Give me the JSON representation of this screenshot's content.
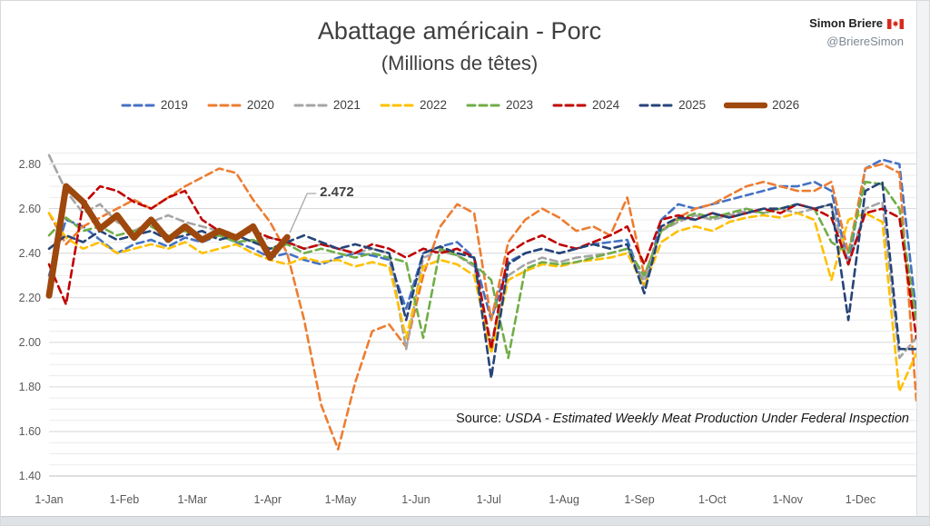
{
  "header": {
    "title": "Abattage américain - Porc",
    "subtitle": "(Millions de têtes)",
    "attribution_name": "Simon Briere",
    "attribution_handle": "@BriereSimon",
    "flag_icon": "canada-flag"
  },
  "annotation": {
    "label": "2.472",
    "series": "2026",
    "week": 15
  },
  "source_note": {
    "prefix": "Source: ",
    "text": "USDA - Estimated Weekly Meat Production Under Federal Inspection"
  },
  "chart_data": {
    "type": "line",
    "title": "Abattage américain - Porc",
    "subtitle": "(Millions de têtes)",
    "xlabel": "",
    "ylabel": "Millions de têtes",
    "x_unit": "week-of-year (weekly data, Jan-Dec)",
    "ylim": [
      1.4,
      2.88
    ],
    "y_ticks": [
      1.4,
      1.6,
      1.8,
      2.0,
      2.2,
      2.4,
      2.6,
      2.8
    ],
    "grid": "horizontal only; minor every 0.05, labeled major every 0.20",
    "legend_position": "top",
    "x_tick_labels": [
      "1-Jan",
      "1-Feb",
      "1-Mar",
      "1-Apr",
      "1-May",
      "1-Jun",
      "1-Jul",
      "1-Aug",
      "1-Sep",
      "1-Oct",
      "1-Nov",
      "1-Dec"
    ],
    "month_start_days": [
      0,
      31,
      59,
      90,
      120,
      151,
      181,
      212,
      243,
      273,
      304,
      334
    ],
    "annotation_color": "#a6a6a6",
    "series": [
      {
        "name": "2019",
        "color": "#4472C4",
        "style": "dashed",
        "weeks": [
          2.3,
          2.55,
          2.52,
          2.46,
          2.4,
          2.44,
          2.46,
          2.43,
          2.47,
          2.45,
          2.48,
          2.45,
          2.42,
          2.38,
          2.4,
          2.37,
          2.35,
          2.38,
          2.4,
          2.39,
          2.37,
          2.15,
          2.4,
          2.43,
          2.45,
          2.38,
          2.1,
          2.36,
          2.4,
          2.42,
          2.4,
          2.42,
          2.44,
          2.45,
          2.46,
          2.25,
          2.55,
          2.62,
          2.6,
          2.62,
          2.64,
          2.66,
          2.68,
          2.7,
          2.7,
          2.72,
          2.68,
          2.35,
          2.78,
          2.82,
          2.8,
          2.13
        ]
      },
      {
        "name": "2020",
        "color": "#ED7D31",
        "style": "dashed",
        "weeks": [
          2.58,
          2.44,
          2.52,
          2.56,
          2.6,
          2.64,
          2.6,
          2.65,
          2.7,
          2.74,
          2.78,
          2.76,
          2.64,
          2.54,
          2.4,
          2.1,
          1.72,
          1.52,
          1.82,
          2.05,
          2.08,
          1.98,
          2.3,
          2.52,
          2.62,
          2.58,
          2.1,
          2.45,
          2.55,
          2.6,
          2.56,
          2.5,
          2.52,
          2.48,
          2.65,
          2.3,
          2.5,
          2.56,
          2.6,
          2.62,
          2.66,
          2.7,
          2.72,
          2.7,
          2.68,
          2.68,
          2.72,
          2.4,
          2.78,
          2.8,
          2.76,
          1.74
        ]
      },
      {
        "name": "2021",
        "color": "#A5A5A5",
        "style": "dashed",
        "weeks": [
          2.84,
          2.68,
          2.58,
          2.62,
          2.54,
          2.5,
          2.54,
          2.57,
          2.54,
          2.52,
          2.5,
          2.48,
          2.45,
          2.47,
          2.45,
          2.42,
          2.44,
          2.42,
          2.4,
          2.42,
          2.4,
          1.97,
          2.38,
          2.41,
          2.39,
          2.34,
          2.0,
          2.3,
          2.35,
          2.38,
          2.36,
          2.38,
          2.39,
          2.4,
          2.42,
          2.28,
          2.5,
          2.54,
          2.57,
          2.55,
          2.57,
          2.59,
          2.58,
          2.6,
          2.58,
          2.6,
          2.62,
          2.35,
          2.6,
          2.63,
          1.93,
          2.02
        ]
      },
      {
        "name": "2022",
        "color": "#FFC000",
        "style": "dashed",
        "weeks": [
          2.58,
          2.47,
          2.42,
          2.45,
          2.4,
          2.42,
          2.44,
          2.42,
          2.45,
          2.4,
          2.42,
          2.44,
          2.4,
          2.37,
          2.35,
          2.38,
          2.36,
          2.37,
          2.34,
          2.36,
          2.34,
          2.02,
          2.34,
          2.37,
          2.35,
          2.3,
          1.95,
          2.28,
          2.32,
          2.35,
          2.34,
          2.36,
          2.37,
          2.38,
          2.4,
          2.25,
          2.45,
          2.5,
          2.52,
          2.5,
          2.54,
          2.56,
          2.57,
          2.56,
          2.58,
          2.55,
          2.28,
          2.55,
          2.58,
          2.54,
          1.78,
          1.95
        ]
      },
      {
        "name": "2023",
        "color": "#70AD47",
        "style": "dashed",
        "weeks": [
          2.48,
          2.56,
          2.5,
          2.52,
          2.48,
          2.5,
          2.52,
          2.48,
          2.5,
          2.46,
          2.48,
          2.45,
          2.46,
          2.42,
          2.44,
          2.4,
          2.42,
          2.4,
          2.38,
          2.4,
          2.38,
          2.36,
          2.02,
          2.42,
          2.39,
          2.35,
          2.28,
          1.93,
          2.33,
          2.36,
          2.35,
          2.36,
          2.38,
          2.4,
          2.42,
          2.3,
          2.5,
          2.55,
          2.58,
          2.56,
          2.58,
          2.6,
          2.58,
          2.6,
          2.62,
          2.6,
          2.45,
          2.4,
          2.72,
          2.71,
          2.6,
          2.1
        ]
      },
      {
        "name": "2024",
        "color": "#C00000",
        "style": "dashed",
        "weeks": [
          2.35,
          2.17,
          2.62,
          2.7,
          2.68,
          2.63,
          2.6,
          2.65,
          2.68,
          2.55,
          2.5,
          2.48,
          2.5,
          2.47,
          2.45,
          2.42,
          2.44,
          2.42,
          2.4,
          2.44,
          2.42,
          2.38,
          2.42,
          2.4,
          2.42,
          2.38,
          1.97,
          2.4,
          2.45,
          2.48,
          2.44,
          2.42,
          2.45,
          2.48,
          2.52,
          2.35,
          2.55,
          2.57,
          2.55,
          2.58,
          2.56,
          2.58,
          2.6,
          2.58,
          2.62,
          2.6,
          2.56,
          2.35,
          2.58,
          2.6,
          2.56,
          2.02
        ]
      },
      {
        "name": "2025",
        "color": "#264478",
        "style": "dashed",
        "weeks": [
          2.42,
          2.48,
          2.45,
          2.5,
          2.46,
          2.48,
          2.5,
          2.46,
          2.48,
          2.5,
          2.46,
          2.48,
          2.45,
          2.42,
          2.45,
          2.48,
          2.45,
          2.42,
          2.44,
          2.42,
          2.4,
          2.1,
          2.4,
          2.43,
          2.4,
          2.38,
          1.84,
          2.35,
          2.4,
          2.42,
          2.4,
          2.42,
          2.44,
          2.42,
          2.44,
          2.22,
          2.52,
          2.56,
          2.55,
          2.58,
          2.56,
          2.58,
          2.6,
          2.6,
          2.62,
          2.6,
          2.62,
          2.1,
          2.68,
          2.72,
          1.97,
          1.97
        ]
      },
      {
        "name": "2026",
        "color": "#9E480E",
        "style": "solid-thick",
        "weeks": [
          2.21,
          2.7,
          2.63,
          2.51,
          2.57,
          2.47,
          2.55,
          2.46,
          2.52,
          2.46,
          2.5,
          2.47,
          2.52,
          2.38,
          2.472
        ],
        "last_value_label": "2.472"
      }
    ]
  }
}
